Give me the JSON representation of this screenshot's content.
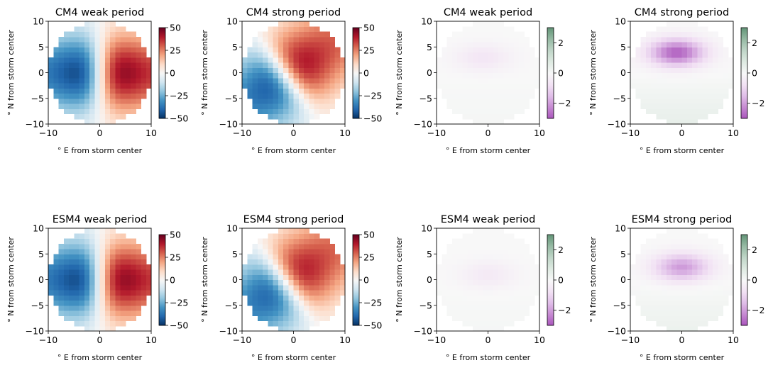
{
  "chart_data": [
    {
      "type": "heatmap",
      "title": "CM4 weak period",
      "xlabel": "° E from storm center",
      "ylabel": "° N from storm center",
      "xlim": [
        -10,
        10
      ],
      "ylim": [
        -10,
        10
      ],
      "xticks": [
        -10,
        0,
        10
      ],
      "yticks": [
        10,
        5,
        0,
        -5,
        -10
      ],
      "colorbar": {
        "colormap": "RdBu_r",
        "range": [
          -50,
          50
        ],
        "ticks": [
          50,
          25,
          0,
          -25,
          -50
        ]
      },
      "field": "dipole",
      "amplitude": 55,
      "angle": 0,
      "shift": [
        0,
        0
      ]
    },
    {
      "type": "heatmap",
      "title": "CM4 strong period",
      "xlabel": "° E from storm center",
      "ylabel": "° N from storm center",
      "xlim": [
        -10,
        10
      ],
      "ylim": [
        -10,
        10
      ],
      "xticks": [
        -10,
        0,
        10
      ],
      "yticks": [
        10,
        5,
        0,
        -5,
        -10
      ],
      "colorbar": {
        "colormap": "RdBu_r",
        "range": [
          -50,
          50
        ],
        "ticks": [
          50,
          25,
          0,
          -25,
          -50
        ]
      },
      "field": "dipole-rotated",
      "amplitude": 50,
      "angle": -35,
      "shift": [
        -1.5,
        -0.5
      ]
    },
    {
      "type": "heatmap",
      "title": "CM4 weak period",
      "xlabel": "° E from storm center",
      "ylabel": "° N from storm center",
      "xlim": [
        -10,
        10
      ],
      "ylim": [
        -10,
        10
      ],
      "xticks": [
        -10,
        0,
        10
      ],
      "yticks": [
        10,
        5,
        0,
        -5,
        -10
      ],
      "colorbar": {
        "colormap": "PiGn",
        "range": [
          -3,
          3
        ],
        "ticks": [
          2,
          0,
          -2
        ]
      },
      "field": "north-minimum",
      "amplitude": 0.6,
      "center": [
        -1,
        3
      ]
    },
    {
      "type": "heatmap",
      "title": "CM4 strong period",
      "xlabel": "° E from storm center",
      "ylabel": "° N from storm center",
      "xlim": [
        -10,
        10
      ],
      "ylim": [
        -10,
        10
      ],
      "xticks": [
        -10,
        0,
        10
      ],
      "yticks": [
        10,
        5,
        0,
        -5,
        -10
      ],
      "colorbar": {
        "colormap": "PiGn",
        "range": [
          -3,
          3
        ],
        "ticks": [
          2,
          0,
          -2
        ]
      },
      "field": "north-minimum",
      "amplitude": 2.8,
      "center": [
        -1,
        4
      ]
    },
    {
      "type": "heatmap",
      "title": "ESM4 weak period",
      "xlabel": "° E from storm center",
      "ylabel": "° N from storm center",
      "xlim": [
        -10,
        10
      ],
      "ylim": [
        -10,
        10
      ],
      "xticks": [
        -10,
        0,
        10
      ],
      "yticks": [
        10,
        5,
        0,
        -5,
        -10
      ],
      "colorbar": {
        "colormap": "RdBu_r",
        "range": [
          -50,
          50
        ],
        "ticks": [
          50,
          25,
          0,
          -25,
          -50
        ]
      },
      "field": "dipole",
      "amplitude": 55,
      "angle": 0,
      "shift": [
        0,
        0
      ]
    },
    {
      "type": "heatmap",
      "title": "ESM4 strong period",
      "xlabel": "° E from storm center",
      "ylabel": "° N from storm center",
      "xlim": [
        -10,
        10
      ],
      "ylim": [
        -10,
        10
      ],
      "xticks": [
        -10,
        0,
        10
      ],
      "yticks": [
        10,
        5,
        0,
        -5,
        -10
      ],
      "colorbar": {
        "colormap": "RdBu_r",
        "range": [
          -50,
          50
        ],
        "ticks": [
          50,
          25,
          0,
          -25,
          -50
        ]
      },
      "field": "dipole-rotated",
      "amplitude": 48,
      "angle": -35,
      "shift": [
        -1.5,
        -0.5
      ]
    },
    {
      "type": "heatmap",
      "title": "ESM4 weak period",
      "xlabel": "° E from storm center",
      "ylabel": "° N from storm center",
      "xlim": [
        -10,
        10
      ],
      "ylim": [
        -10,
        10
      ],
      "xticks": [
        -10,
        0,
        10
      ],
      "yticks": [
        10,
        5,
        0,
        -5,
        -10
      ],
      "colorbar": {
        "colormap": "PiGn",
        "range": [
          -3,
          3
        ],
        "ticks": [
          2,
          0,
          -2
        ]
      },
      "field": "north-minimum",
      "amplitude": 0.5,
      "center": [
        0,
        1
      ]
    },
    {
      "type": "heatmap",
      "title": "ESM4 strong period",
      "xlabel": "° E from storm center",
      "ylabel": "° N from storm center",
      "xlim": [
        -10,
        10
      ],
      "ylim": [
        -10,
        10
      ],
      "xticks": [
        -10,
        0,
        10
      ],
      "yticks": [
        10,
        5,
        0,
        -5,
        -10
      ],
      "colorbar": {
        "colormap": "PiGn",
        "range": [
          -3,
          3
        ],
        "ticks": [
          2,
          0,
          -2
        ]
      },
      "field": "north-minimum",
      "amplitude": 2.0,
      "center": [
        0,
        2.5
      ]
    }
  ]
}
